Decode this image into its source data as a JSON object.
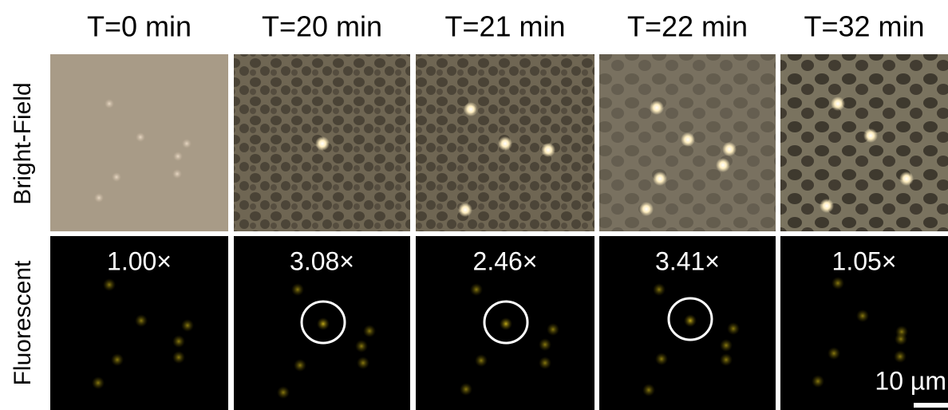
{
  "columns": [
    "T=0 min",
    "T=20 min",
    "T=21 min",
    "T=22 min",
    "T=32 min"
  ],
  "rows": [
    "Bright-Field",
    "Fluorescent"
  ],
  "fold_changes": [
    "1.00×",
    "3.08×",
    "2.46×",
    "3.41×",
    "1.05×"
  ],
  "scale_bar": "10 µm"
}
